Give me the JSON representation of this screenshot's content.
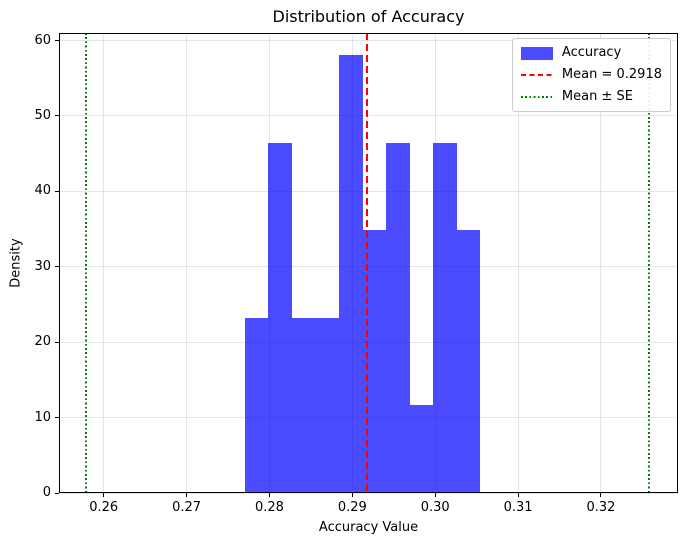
{
  "chart_data": {
    "type": "bar",
    "subtype": "histogram-density",
    "title": "Distribution of Accuracy",
    "xlabel": "Accuracy Value",
    "ylabel": "Density",
    "xlim": [
      0.2546,
      0.3293
    ],
    "ylim": [
      0,
      61
    ],
    "grid": true,
    "xticks": [
      {
        "v": 0.26,
        "label": "0.26"
      },
      {
        "v": 0.27,
        "label": "0.27"
      },
      {
        "v": 0.28,
        "label": "0.28"
      },
      {
        "v": 0.29,
        "label": "0.29"
      },
      {
        "v": 0.3,
        "label": "0.30"
      },
      {
        "v": 0.31,
        "label": "0.31"
      },
      {
        "v": 0.32,
        "label": "0.32"
      }
    ],
    "yticks": [
      {
        "v": 0,
        "label": "0"
      },
      {
        "v": 10,
        "label": "10"
      },
      {
        "v": 20,
        "label": "20"
      },
      {
        "v": 30,
        "label": "30"
      },
      {
        "v": 40,
        "label": "40"
      },
      {
        "v": 50,
        "label": "50"
      },
      {
        "v": 60,
        "label": "60"
      }
    ],
    "bins": {
      "edges": [
        0.277,
        0.27985,
        0.28269,
        0.28554,
        0.28838,
        0.29123,
        0.29407,
        0.29692,
        0.29976,
        0.30261,
        0.30545
      ],
      "densities": [
        23.23,
        46.45,
        23.23,
        23.23,
        58.06,
        34.84,
        46.45,
        11.61,
        46.45,
        34.84
      ]
    },
    "bar_color": "#0000ff",
    "bar_alpha": 0.7,
    "mean_line": {
      "value": 0.2918,
      "color": "#ff0000",
      "style": "dashed"
    },
    "se_lines": {
      "values": [
        0.2578,
        0.3258
      ],
      "color": "#008000",
      "style": "dotted"
    },
    "legend": {
      "position": "upper right",
      "entries": [
        {
          "type": "patch",
          "color": "#0000ff",
          "alpha": 0.7,
          "label": "Accuracy"
        },
        {
          "type": "dashed-line",
          "color": "#ff0000",
          "label": "Mean = 0.2918"
        },
        {
          "type": "dotted-line",
          "color": "#008000",
          "label": "Mean ± SE"
        }
      ]
    }
  }
}
